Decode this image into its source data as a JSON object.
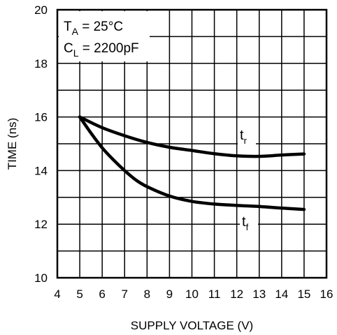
{
  "chart_data": {
    "type": "line",
    "xlabel": "SUPPLY VOLTAGE (V)",
    "ylabel": "TIME (ns)",
    "xlim": [
      4,
      16
    ],
    "ylim": [
      10,
      20
    ],
    "x_ticks": [
      "4",
      "5",
      "6",
      "7",
      "8",
      "9",
      "10",
      "11",
      "12",
      "13",
      "14",
      "15",
      "16"
    ],
    "y_ticks": [
      "10",
      "12",
      "14",
      "16",
      "18",
      "20"
    ],
    "grid": true,
    "annotations": {
      "line1": {
        "main": "T",
        "sub": "A",
        "rest": " = 25°C"
      },
      "line2": {
        "main": "C",
        "sub": "L",
        "rest": " = 2200pF"
      }
    },
    "series": [
      {
        "label_main": "t",
        "label_sub": "r",
        "x": [
          5,
          6,
          7,
          8,
          9,
          10,
          11,
          12,
          13,
          14,
          15
        ],
        "y": [
          16.0,
          15.6,
          15.3,
          15.05,
          14.87,
          14.75,
          14.63,
          14.55,
          14.53,
          14.58,
          14.62
        ]
      },
      {
        "label_main": "t",
        "label_sub": "f",
        "x": [
          5,
          5.5,
          6,
          6.5,
          7,
          7.5,
          8,
          9,
          10,
          11,
          12,
          13,
          14,
          15
        ],
        "y": [
          16.0,
          15.4,
          14.85,
          14.4,
          14.0,
          13.65,
          13.4,
          13.05,
          12.85,
          12.75,
          12.7,
          12.66,
          12.6,
          12.55
        ]
      }
    ]
  }
}
